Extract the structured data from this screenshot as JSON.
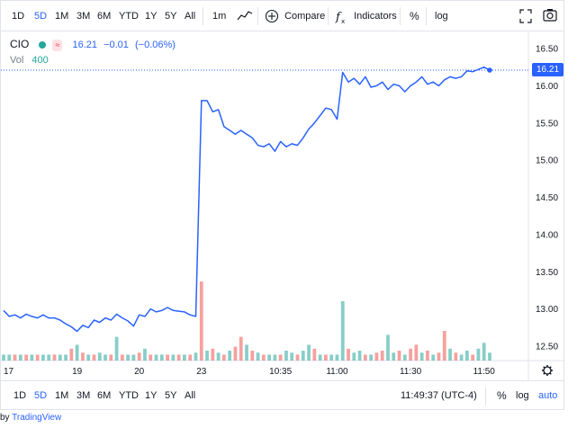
{
  "toolbar": {
    "ranges": [
      "1D",
      "5D",
      "1M",
      "3M",
      "6M",
      "YTD",
      "1Y",
      "5Y",
      "All"
    ],
    "active_range": "5D",
    "interval": "1m",
    "compare_label": "Compare",
    "indicators_label": "Indicators",
    "percent_label": "%",
    "log_label": "log",
    "icons": [
      "line-style-icon",
      "compare-plus-icon",
      "indicators-fx-icon",
      "fullscreen-icon",
      "snapshot-camera-icon"
    ]
  },
  "legend": {
    "symbol": "CIO",
    "badge": "≈",
    "last": "16.21",
    "change": "−0.01",
    "change_pct": "(−0.06%)",
    "vol_label": "Vol",
    "vol_value": "400"
  },
  "bottom": {
    "ranges": [
      "1D",
      "5D",
      "1M",
      "3M",
      "6M",
      "YTD",
      "1Y",
      "5Y",
      "All"
    ],
    "active_range": "5D",
    "clock": "11:49:37 (UTC-4)",
    "percent_label": "%",
    "log_label": "log",
    "auto_label": "auto"
  },
  "credit": {
    "prefix": "by",
    "brand": "TradingView"
  },
  "colors": {
    "line": "#2962ff",
    "vol_up": "#26a69a",
    "vol_down": "#ef5350",
    "active": "#2962ff"
  },
  "chart_data": {
    "type": "line",
    "title": "",
    "xlabel": "",
    "ylabel": "",
    "ylim": [
      12.3,
      16.6
    ],
    "y_ticks": [
      "16.50",
      "16.00",
      "15.50",
      "15.00",
      "14.50",
      "14.00",
      "13.50",
      "13.00",
      "12.50"
    ],
    "y_tick_values": [
      16.5,
      16.0,
      15.5,
      15.0,
      14.5,
      14.0,
      13.5,
      13.0,
      12.5
    ],
    "x_ticks": [
      {
        "label": "17",
        "i": 0
      },
      {
        "label": "19",
        "i": 13
      },
      {
        "label": "20",
        "i": 24
      },
      {
        "label": "23",
        "i": 35
      },
      {
        "label": "10:35",
        "i": 49
      },
      {
        "label": "11:00",
        "i": 59
      },
      {
        "label": "11:30",
        "i": 72
      },
      {
        "label": "11:50",
        "i": 85
      }
    ],
    "last_price": 16.21,
    "last_price_label": "16.21",
    "price": [
      12.98,
      12.9,
      12.92,
      12.88,
      12.93,
      12.9,
      12.88,
      12.92,
      12.88,
      12.88,
      12.85,
      12.8,
      12.76,
      12.7,
      12.78,
      12.75,
      12.85,
      12.82,
      12.88,
      12.85,
      12.93,
      12.88,
      12.84,
      12.77,
      12.92,
      12.9,
      13.0,
      12.96,
      12.98,
      13.02,
      12.98,
      12.97,
      12.96,
      12.92,
      12.9,
      15.8,
      15.8,
      15.65,
      15.68,
      15.45,
      15.4,
      15.35,
      15.4,
      15.35,
      15.3,
      15.2,
      15.18,
      15.22,
      15.12,
      15.25,
      15.18,
      15.22,
      15.2,
      15.3,
      15.42,
      15.5,
      15.6,
      15.7,
      15.68,
      15.55,
      16.18,
      16.05,
      16.1,
      16.02,
      16.12,
      15.98,
      16.0,
      16.05,
      15.95,
      16.02,
      16.0,
      15.92,
      16.0,
      16.05,
      16.12,
      16.02,
      16.05,
      16.0,
      16.08,
      16.12,
      16.1,
      16.12,
      16.2,
      16.19,
      16.22,
      16.25,
      16.21
    ],
    "volume": [
      0.3,
      0.3,
      0.3,
      0.3,
      0.3,
      0.3,
      0.3,
      0.3,
      0.3,
      0.3,
      0.3,
      0.3,
      0.6,
      0.8,
      0.4,
      0.3,
      0.3,
      0.4,
      0.3,
      0.3,
      1.2,
      0.3,
      0.3,
      0.3,
      0.4,
      0.6,
      0.3,
      0.3,
      0.3,
      0.3,
      0.3,
      0.3,
      0.3,
      0.3,
      0.4,
      4.0,
      0.5,
      0.6,
      0.4,
      0.3,
      0.5,
      0.7,
      1.2,
      0.8,
      0.5,
      0.4,
      0.3,
      0.3,
      0.3,
      0.3,
      0.5,
      0.4,
      0.3,
      0.5,
      0.8,
      0.6,
      0.3,
      0.3,
      0.3,
      0.3,
      3.0,
      0.6,
      0.4,
      0.5,
      0.3,
      0.3,
      0.4,
      0.5,
      1.3,
      0.4,
      0.5,
      0.3,
      0.6,
      0.8,
      0.4,
      0.5,
      0.3,
      0.4,
      1.5,
      0.6,
      0.4,
      0.3,
      0.5,
      0.3,
      0.6,
      0.9,
      0.4
    ],
    "volume_dir": [
      1,
      1,
      -1,
      1,
      -1,
      1,
      -1,
      1,
      1,
      -1,
      1,
      1,
      -1,
      1,
      -1,
      1,
      -1,
      1,
      1,
      -1,
      1,
      -1,
      1,
      1,
      -1,
      1,
      -1,
      1,
      1,
      -1,
      1,
      -1,
      1,
      -1,
      1,
      -1,
      1,
      -1,
      1,
      -1,
      1,
      -1,
      -1,
      1,
      -1,
      1,
      -1,
      1,
      1,
      -1,
      1,
      1,
      -1,
      1,
      1,
      -1,
      1,
      -1,
      1,
      1,
      1,
      -1,
      1,
      1,
      -1,
      1,
      -1,
      -1,
      1,
      1,
      -1,
      1,
      -1,
      -1,
      1,
      -1,
      1,
      -1,
      -1,
      1,
      -1,
      1,
      1,
      -1,
      1,
      1,
      1
    ]
  }
}
